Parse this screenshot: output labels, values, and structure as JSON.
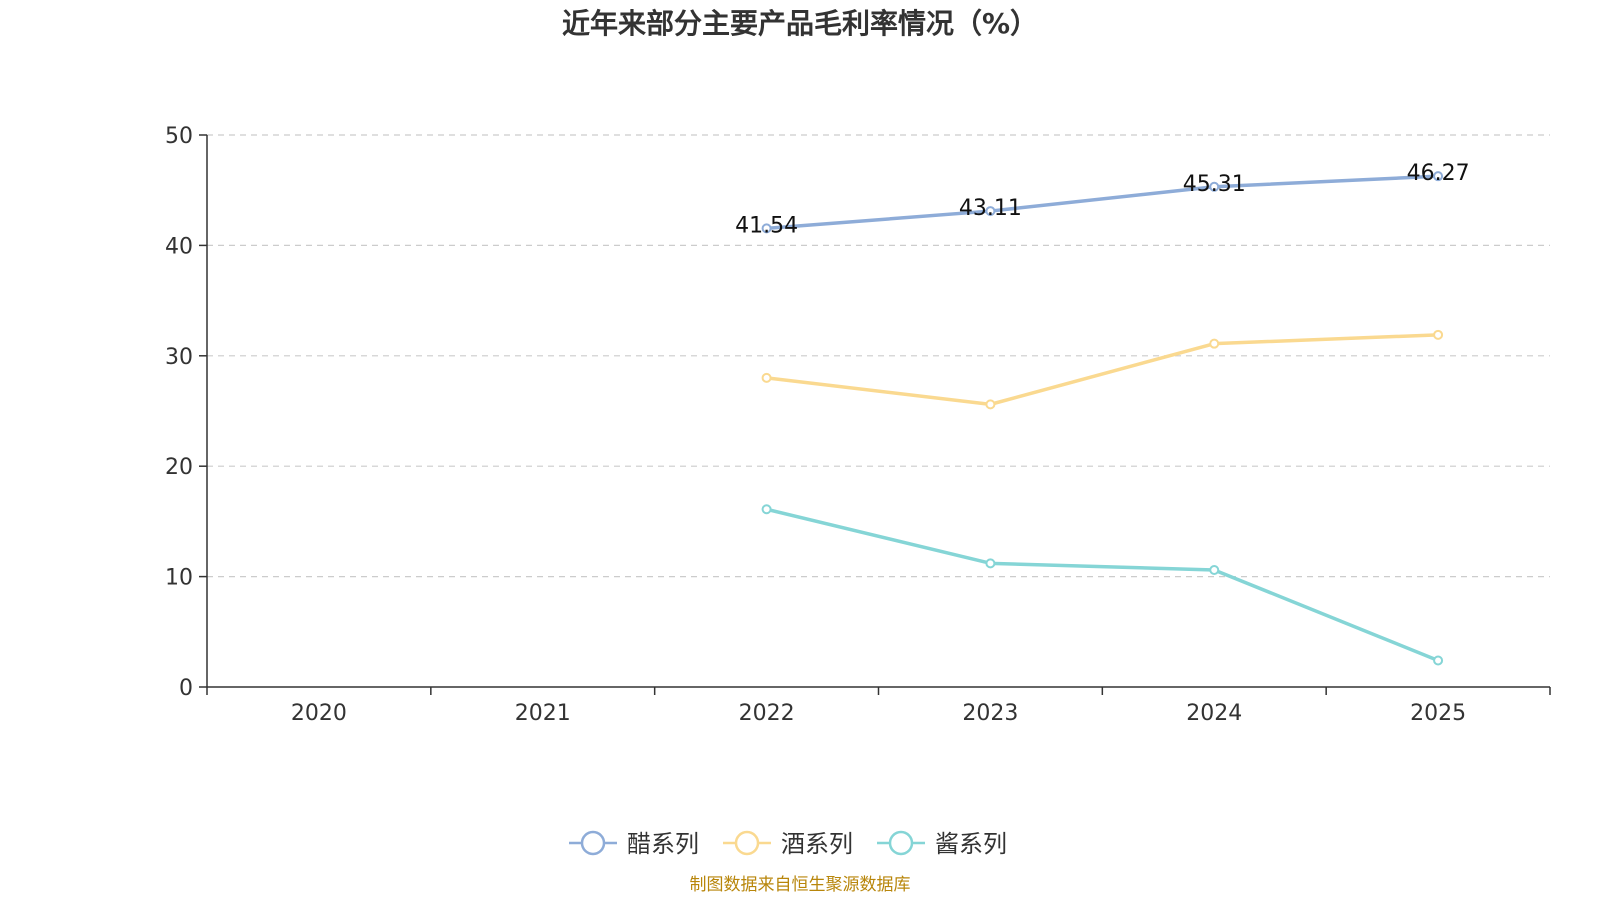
{
  "chart_data": {
    "type": "line",
    "title": "近年来部分主要产品毛利率情况（%）",
    "categories": [
      "2020",
      "2021",
      "2022",
      "2023",
      "2024",
      "2025"
    ],
    "xlabel": "",
    "ylabel": "",
    "ylim": [
      0,
      50
    ],
    "yticks": [
      0,
      10,
      20,
      30,
      40,
      50
    ],
    "grid": true,
    "legend_position": "bottom-center",
    "series": [
      {
        "name": "醋系列",
        "color": "#8eacd8",
        "values": [
          null,
          null,
          41.54,
          43.11,
          45.31,
          46.27
        ],
        "show_labels": true
      },
      {
        "name": "酒系列",
        "color": "#fad990",
        "values": [
          null,
          null,
          28.0,
          25.6,
          31.1,
          31.9
        ],
        "show_labels": false
      },
      {
        "name": "酱系列",
        "color": "#85d5d6",
        "values": [
          null,
          null,
          16.1,
          11.2,
          10.6,
          2.4
        ],
        "show_labels": false
      }
    ]
  },
  "source_note": "制图数据来自恒生聚源数据库"
}
